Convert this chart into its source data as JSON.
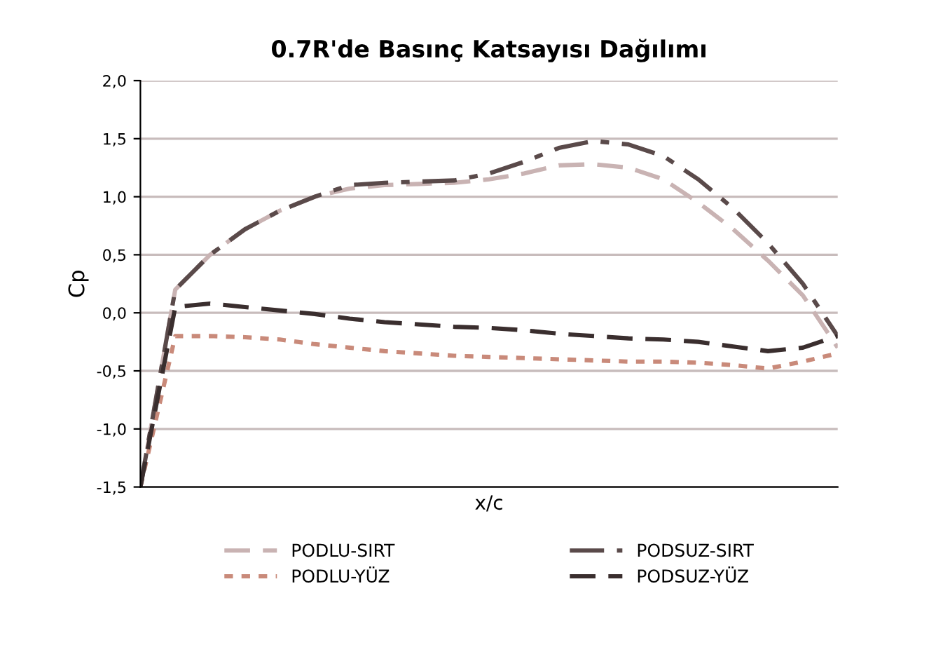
{
  "chart_data": {
    "type": "line",
    "title": "0.7R'de Basınç Katsayısı Dağılımı",
    "xlabel": "x/c",
    "ylabel": "Cp",
    "categories": [
      null,
      null,
      null,
      null,
      null,
      null,
      null,
      null,
      null,
      null,
      null,
      null,
      null,
      null,
      null,
      null,
      null,
      null,
      null,
      null,
      null
    ],
    "ylim": [
      -1.5,
      2.0
    ],
    "yticks": [
      {
        "value": -1.5,
        "label": "-1,5"
      },
      {
        "value": -1.0,
        "label": "-1,0"
      },
      {
        "value": -0.5,
        "label": "-0,5"
      },
      {
        "value": 0,
        "label": "0,0"
      },
      {
        "value": 0.5,
        "label": "0,5"
      },
      {
        "value": 1.0,
        "label": "1,0"
      },
      {
        "value": 1.5,
        "label": "1,5"
      },
      {
        "value": 2.0,
        "label": "2,0"
      }
    ],
    "tick_labels": "y",
    "grid": "y",
    "legend": "bottom",
    "series": [
      {
        "name": "PODLU-SIRT",
        "color": "#c9b3b3",
        "line_style": "dashed",
        "values": [
          -1.5,
          0.2,
          0.5,
          0.72,
          0.88,
          1.0,
          1.07,
          1.1,
          1.11,
          1.12,
          1.15,
          1.2,
          1.27,
          1.28,
          1.25,
          1.15,
          0.95,
          0.72,
          0.45,
          0.15,
          -0.3
        ]
      },
      {
        "name": "PODLU-YÜZ",
        "color": "#c98a7a",
        "line_style": "dotted",
        "values": [
          -1.5,
          -0.2,
          -0.2,
          -0.21,
          -0.23,
          -0.27,
          -0.3,
          -0.33,
          -0.35,
          -0.37,
          -0.38,
          -0.39,
          -0.4,
          -0.41,
          -0.42,
          -0.42,
          -0.43,
          -0.45,
          -0.48,
          -0.42,
          -0.35
        ]
      },
      {
        "name": "PODSUZ-SIRT",
        "color": "#5a4a4a",
        "line_style": "dashdot",
        "values": [
          -1.5,
          0.2,
          0.5,
          0.72,
          0.88,
          1.0,
          1.1,
          1.12,
          1.13,
          1.14,
          1.2,
          1.3,
          1.42,
          1.48,
          1.45,
          1.35,
          1.15,
          0.9,
          0.6,
          0.25,
          -0.2
        ]
      },
      {
        "name": "PODSUZ-YÜZ",
        "color": "#3a2e2e",
        "line_style": "dashed",
        "values": [
          -1.5,
          0.05,
          0.08,
          0.05,
          0.02,
          -0.01,
          -0.05,
          -0.08,
          -0.1,
          -0.12,
          -0.13,
          -0.15,
          -0.18,
          -0.2,
          -0.22,
          -0.23,
          -0.25,
          -0.29,
          -0.33,
          -0.3,
          -0.2
        ]
      }
    ]
  }
}
